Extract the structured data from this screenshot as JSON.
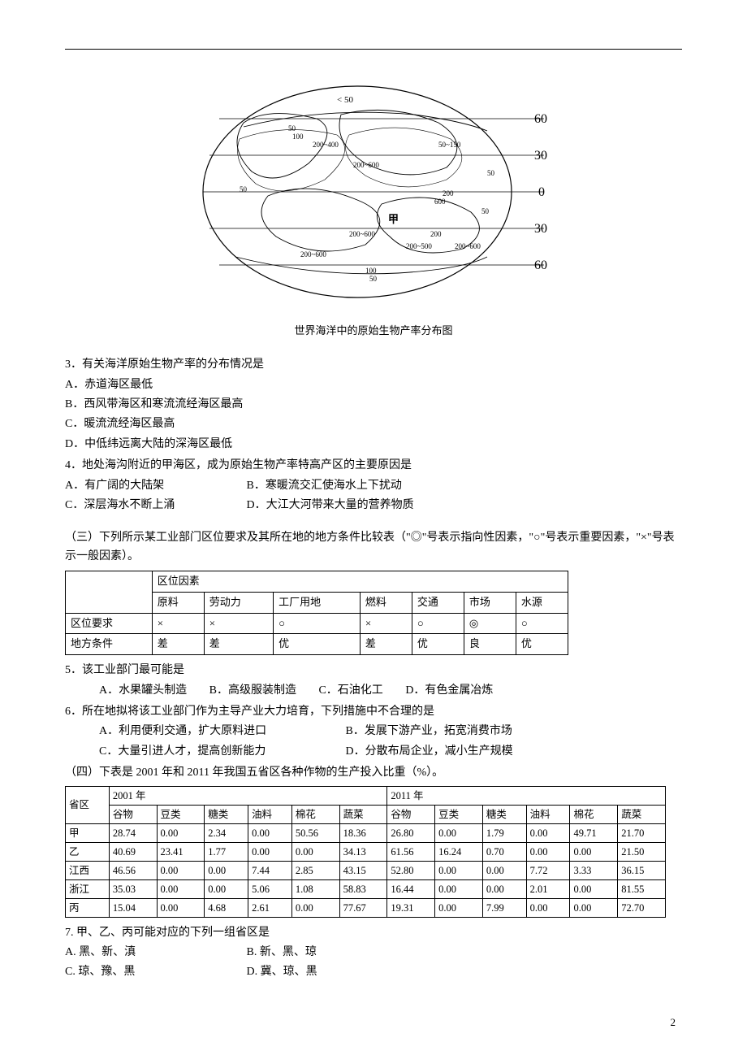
{
  "figure": {
    "caption": "世界海洋中的原始生物产率分布图",
    "lat_labels": [
      "60",
      "30",
      "0",
      "30",
      "60"
    ],
    "contour_labels": [
      "< 50",
      "50",
      "100",
      "200~400",
      "200~500",
      "200~600",
      "50~150",
      "200",
      "200~600",
      "100",
      "50",
      "甲"
    ],
    "stroke": "#000000",
    "bg": "#ffffff"
  },
  "q3": {
    "stem": "3．有关海洋原始生物产率的分布情况是",
    "a": "A．赤道海区最低",
    "b": "B．西风带海区和寒流流经海区最高",
    "c": "C．暖流流经海区最高",
    "d": "D．中低纬远离大陆的深海区最低"
  },
  "q4": {
    "stem": "4．地处海沟附近的甲海区，成为原始生物产率特高产区的主要原因是",
    "a": "A．有广阔的大陆架",
    "b": "B．寒暖流交汇使海水上下扰动",
    "c": "C．深层海水不断上涌",
    "d": "D．大江大河带来大量的营养物质"
  },
  "section3": {
    "intro": "（三）下列所示某工业部门区位要求及其所在地的地方条件比较表（\"◎\"号表示指向性因素，\"○\"号表示重要因素，\"×\"号表示一般因素）。"
  },
  "loc_table": {
    "header": [
      "",
      "区位因素"
    ],
    "cols": [
      "原料",
      "劳动力",
      "工厂用地",
      "燃料",
      "交通",
      "市场",
      "水源"
    ],
    "row1_label": "区位要求",
    "row1": [
      "×",
      "×",
      "○",
      "×",
      "○",
      "◎",
      "○"
    ],
    "row2_label": "地方条件",
    "row2": [
      "差",
      "差",
      "优",
      "差",
      "优",
      "良",
      "优"
    ]
  },
  "q5": {
    "stem": "5．该工业部门最可能是",
    "a": "A．水果罐头制造",
    "b": "B．高级服装制造",
    "c": "C．石油化工",
    "d": "D．有色金属冶炼"
  },
  "q6": {
    "stem": "6．所在地拟将该工业部门作为主导产业大力培育，下列措施中不合理的是",
    "a": "A．利用便利交通，扩大原料进口",
    "b": "B．发展下游产业，拓宽消费市场",
    "c": "C．大量引进人才，提高创新能力",
    "d": "D．分散布局企业，减小生产规模"
  },
  "section4": {
    "intro": "（四）下表是 2001 年和 2011 年我国五省区各种作物的生产投入比重（%）。"
  },
  "prov_table": {
    "group1": "2001 年",
    "group2": "2011 年",
    "region_col": "省区",
    "cols": [
      "谷物",
      "豆类",
      "糖类",
      "油料",
      "棉花",
      "蔬菜",
      "谷物",
      "豆类",
      "糖类",
      "油料",
      "棉花",
      "蔬菜"
    ],
    "rows": [
      {
        "label": "甲",
        "v": [
          "28.74",
          "0.00",
          "2.34",
          "0.00",
          "50.56",
          "18.36",
          "26.80",
          "0.00",
          "1.79",
          "0.00",
          "49.71",
          "21.70"
        ]
      },
      {
        "label": "乙",
        "v": [
          "40.69",
          "23.41",
          "1.77",
          "0.00",
          "0.00",
          "34.13",
          "61.56",
          "16.24",
          "0.70",
          "0.00",
          "0.00",
          "21.50"
        ]
      },
      {
        "label": "江西",
        "v": [
          "46.56",
          "0.00",
          "0.00",
          "7.44",
          "2.85",
          "43.15",
          "52.80",
          "0.00",
          "0.00",
          "7.72",
          "3.33",
          "36.15"
        ]
      },
      {
        "label": "浙江",
        "v": [
          "35.03",
          "0.00",
          "0.00",
          "5.06",
          "1.08",
          "58.83",
          "16.44",
          "0.00",
          "0.00",
          "2.01",
          "0.00",
          "81.55"
        ]
      },
      {
        "label": "丙",
        "v": [
          "15.04",
          "0.00",
          "4.68",
          "2.61",
          "0.00",
          "77.67",
          "19.31",
          "0.00",
          "7.99",
          "0.00",
          "0.00",
          "72.70"
        ]
      }
    ]
  },
  "q7": {
    "stem": "7. 甲、乙、丙可能对应的下列一组省区是",
    "a": "A. 黑、新、滇",
    "b": "B. 新、黑、琼",
    "c": "C. 琼、豫、黑",
    "d": "D. 冀、琼、黑"
  },
  "page_number": "2"
}
